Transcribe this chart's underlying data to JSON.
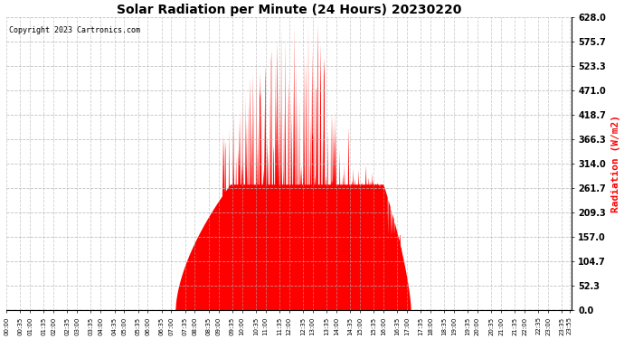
{
  "title": "Solar Radiation per Minute (24 Hours) 20230220",
  "ylabel": "Radiation (W/m2)",
  "copyright": "Copyright 2023 Cartronics.com",
  "background_color": "#ffffff",
  "fill_color": "#ff0000",
  "line_color": "#ff0000",
  "zero_line_color": "#ff0000",
  "grid_color": "#b0b0b0",
  "ylabel_color": "#ff0000",
  "title_color": "#000000",
  "ylim": [
    0.0,
    628.0
  ],
  "yticks": [
    0.0,
    52.3,
    104.7,
    157.0,
    209.3,
    261.7,
    314.0,
    366.3,
    418.7,
    471.0,
    523.3,
    575.7,
    628.0
  ],
  "total_minutes": 1440,
  "sunrise_minute": 430,
  "sunset_minute": 1030,
  "peak_minute": 760,
  "plateau_level": 270.0,
  "peak_max": 628.0
}
